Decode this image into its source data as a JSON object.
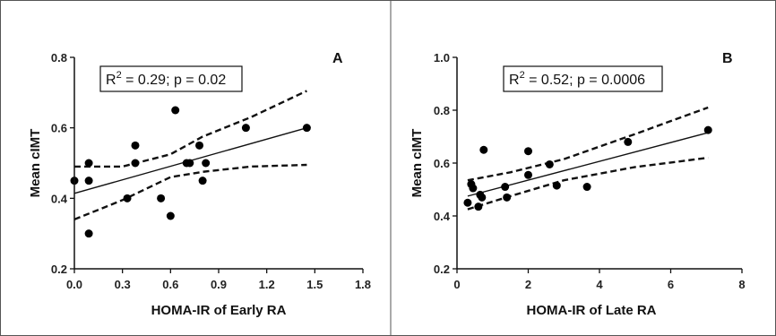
{
  "chart_data": [
    {
      "type": "scatter",
      "panel_label": "A",
      "xlabel": "HOMA-IR of Early RA",
      "ylabel": "Mean cIMT",
      "xlim": [
        0.0,
        1.8
      ],
      "ylim": [
        0.2,
        0.8
      ],
      "x_ticks": [
        "0.0",
        "0.3",
        "0.6",
        "0.9",
        "1.2",
        "1.5",
        "1.8"
      ],
      "y_ticks": [
        "0.2",
        "0.4",
        "0.6",
        "0.8"
      ],
      "annotation": {
        "r_symbol": "R",
        "r_power": "2",
        "stat_text": " = 0.29; p = 0.02"
      },
      "points": [
        {
          "x": 0.0,
          "y": 0.45
        },
        {
          "x": 0.09,
          "y": 0.3
        },
        {
          "x": 0.09,
          "y": 0.45
        },
        {
          "x": 0.09,
          "y": 0.5
        },
        {
          "x": 0.33,
          "y": 0.4
        },
        {
          "x": 0.38,
          "y": 0.5
        },
        {
          "x": 0.38,
          "y": 0.55
        },
        {
          "x": 0.54,
          "y": 0.4
        },
        {
          "x": 0.6,
          "y": 0.35
        },
        {
          "x": 0.63,
          "y": 0.65
        },
        {
          "x": 0.7,
          "y": 0.5
        },
        {
          "x": 0.72,
          "y": 0.5
        },
        {
          "x": 0.78,
          "y": 0.55
        },
        {
          "x": 0.8,
          "y": 0.45
        },
        {
          "x": 0.82,
          "y": 0.5
        },
        {
          "x": 1.07,
          "y": 0.6
        },
        {
          "x": 1.45,
          "y": 0.6
        }
      ],
      "fit_line": {
        "x": [
          0.0,
          1.45
        ],
        "y": [
          0.414,
          0.6
        ]
      },
      "ci_upper": {
        "x": [
          0.0,
          0.3,
          0.6,
          0.8,
          1.1,
          1.45
        ],
        "y": [
          0.49,
          0.49,
          0.525,
          0.575,
          0.63,
          0.705
        ]
      },
      "ci_lower": {
        "x": [
          0.0,
          0.3,
          0.6,
          0.8,
          1.1,
          1.45
        ],
        "y": [
          0.34,
          0.395,
          0.46,
          0.475,
          0.49,
          0.495
        ]
      }
    },
    {
      "type": "scatter",
      "panel_label": "B",
      "xlabel": "HOMA-IR of Late RA",
      "ylabel": "Mean cIMT",
      "xlim": [
        0,
        8
      ],
      "ylim": [
        0.2,
        1.0
      ],
      "x_ticks": [
        "0",
        "2",
        "4",
        "6",
        "8"
      ],
      "y_ticks": [
        "0.2",
        "0.4",
        "0.6",
        "0.8",
        "1.0"
      ],
      "annotation": {
        "r_symbol": "R",
        "r_power": "2",
        "stat_text": " = 0.52; p = 0.0006"
      },
      "points": [
        {
          "x": 0.3,
          "y": 0.45
        },
        {
          "x": 0.4,
          "y": 0.52
        },
        {
          "x": 0.45,
          "y": 0.505
        },
        {
          "x": 0.6,
          "y": 0.435
        },
        {
          "x": 0.65,
          "y": 0.48
        },
        {
          "x": 0.7,
          "y": 0.47
        },
        {
          "x": 0.75,
          "y": 0.65
        },
        {
          "x": 1.35,
          "y": 0.51
        },
        {
          "x": 1.4,
          "y": 0.47
        },
        {
          "x": 2.0,
          "y": 0.555
        },
        {
          "x": 2.0,
          "y": 0.645
        },
        {
          "x": 2.6,
          "y": 0.595
        },
        {
          "x": 2.8,
          "y": 0.515
        },
        {
          "x": 3.65,
          "y": 0.51
        },
        {
          "x": 4.8,
          "y": 0.68
        },
        {
          "x": 7.05,
          "y": 0.725
        }
      ],
      "fit_line": {
        "x": [
          0.3,
          7.05
        ],
        "y": [
          0.475,
          0.715
        ]
      },
      "ci_upper": {
        "x": [
          0.3,
          1.5,
          3.0,
          5.0,
          7.05
        ],
        "y": [
          0.535,
          0.565,
          0.615,
          0.71,
          0.81
        ]
      },
      "ci_lower": {
        "x": [
          0.3,
          1.5,
          3.0,
          5.0,
          7.05
        ],
        "y": [
          0.425,
          0.475,
          0.535,
          0.585,
          0.62
        ]
      }
    }
  ]
}
